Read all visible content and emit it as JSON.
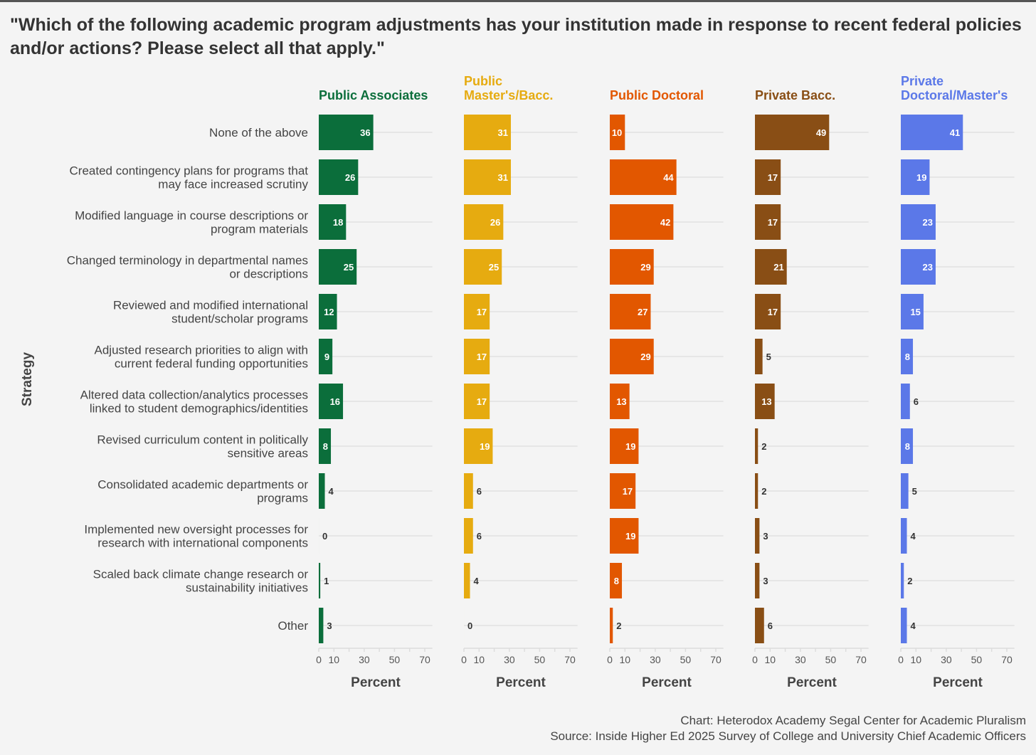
{
  "chart_data": {
    "type": "bar",
    "orientation": "horizontal",
    "title": "\"Which of the following academic program adjustments has your institution made in response to recent federal policies and/or actions? Please select all that apply.\"",
    "ylabel": "Strategy",
    "xlabel": "Percent",
    "xlim": [
      0,
      75
    ],
    "xticks": [
      0,
      10,
      20,
      30,
      40,
      50,
      60,
      70
    ],
    "xtick_labels": [
      "0",
      "10",
      "",
      "30",
      "",
      "50",
      "",
      "70"
    ],
    "grid": true,
    "categories": [
      "None of the above",
      "Created contingency plans for programs that|may face increased scrutiny",
      "Modified language in course descriptions or|program materials",
      "Changed terminology in departmental names|or descriptions",
      "Reviewed and modified international|student/scholar programs",
      "Adjusted research priorities to align with|current federal funding opportunities",
      "Altered data collection/analytics processes|linked to student demographics/identities",
      "Revised curriculum content in politically|sensitive areas",
      "Consolidated academic departments or|programs",
      "Implemented new oversight processes for|research with international components",
      "Scaled back climate change research or|sustainability initiatives",
      "Other"
    ],
    "series": [
      {
        "name": "Public Associates",
        "color": "#0b6e3b",
        "values": [
          36,
          26,
          18,
          25,
          12,
          9,
          16,
          8,
          4,
          0,
          1,
          3
        ]
      },
      {
        "name": "Public|Master's/Bacc.",
        "color": "#e6ab10",
        "values": [
          31,
          31,
          26,
          25,
          17,
          17,
          17,
          19,
          6,
          6,
          4,
          0
        ]
      },
      {
        "name": "Public Doctoral",
        "color": "#e25700",
        "values": [
          10,
          44,
          42,
          29,
          27,
          29,
          13,
          19,
          17,
          19,
          8,
          2
        ]
      },
      {
        "name": "Private Bacc.",
        "color": "#894e15",
        "values": [
          49,
          17,
          17,
          21,
          17,
          5,
          13,
          2,
          2,
          3,
          3,
          6
        ]
      },
      {
        "name": "Private|Doctoral/Master's",
        "color": "#5b78e8",
        "values": [
          41,
          19,
          23,
          23,
          15,
          8,
          6,
          8,
          5,
          4,
          2,
          4
        ]
      }
    ]
  },
  "captions": {
    "chart_credit": "Chart: Heterodox Academy Segal Center for Academic Pluralism",
    "source": "Source: Inside Higher Ed 2025 Survey of College and University Chief Academic Officers"
  }
}
